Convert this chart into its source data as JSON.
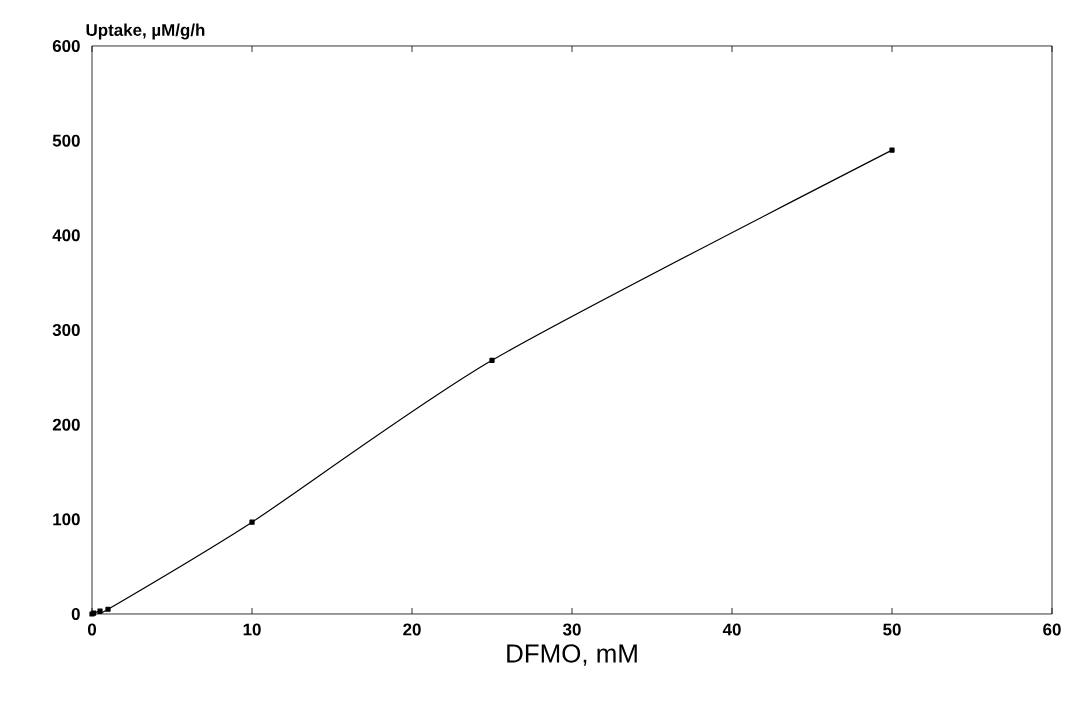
{
  "chart_data": {
    "type": "line",
    "xlabel": "DFMO, mM",
    "ylabel": "Uptake, µM/g/h",
    "x": [
      0,
      0.1,
      0.5,
      1,
      10,
      25,
      50
    ],
    "series": [
      {
        "color": "#000000",
        "values": [
          0,
          1,
          3,
          5,
          97,
          268,
          490
        ]
      }
    ],
    "xlim": [
      0,
      60
    ],
    "ylim": [
      0,
      600
    ],
    "xticks": [
      0,
      10,
      20,
      30,
      40,
      50,
      60
    ],
    "yticks": [
      0,
      100,
      200,
      300,
      400,
      500,
      600
    ],
    "marker": "square",
    "line_style": "solid"
  }
}
